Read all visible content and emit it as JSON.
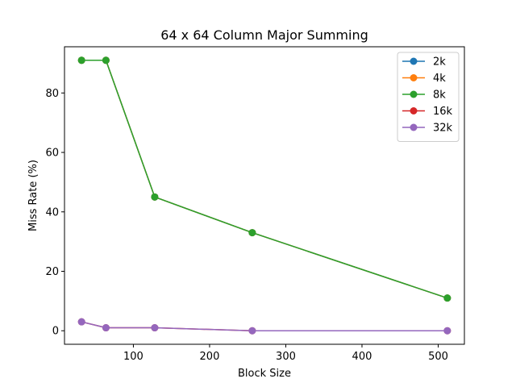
{
  "chart_data": {
    "type": "line",
    "title": "64 x 64 Column Major Summing",
    "xlabel": "Block Size",
    "ylabel": "Miss Rate (%)",
    "x": [
      32,
      64,
      128,
      256,
      512
    ],
    "xlim": [
      9.6,
      534.4
    ],
    "ylim": [
      -4.55,
      95.55
    ],
    "xticks": [
      100,
      200,
      300,
      400,
      500
    ],
    "yticks": [
      0,
      20,
      40,
      60,
      80
    ],
    "grid": false,
    "legend_position": "top-right",
    "series": [
      {
        "name": "2k",
        "color": "#1f77b4",
        "values": [
          91,
          91,
          45,
          33,
          11
        ]
      },
      {
        "name": "4k",
        "color": "#ff7f0e",
        "values": [
          91,
          91,
          45,
          33,
          11
        ]
      },
      {
        "name": "8k",
        "color": "#2ca02c",
        "values": [
          91,
          91,
          45,
          33,
          11
        ]
      },
      {
        "name": "16k",
        "color": "#d62728",
        "values": [
          3,
          1,
          1,
          0,
          0
        ]
      },
      {
        "name": "32k",
        "color": "#9467bd",
        "values": [
          3,
          1,
          1,
          0,
          0
        ]
      }
    ]
  }
}
